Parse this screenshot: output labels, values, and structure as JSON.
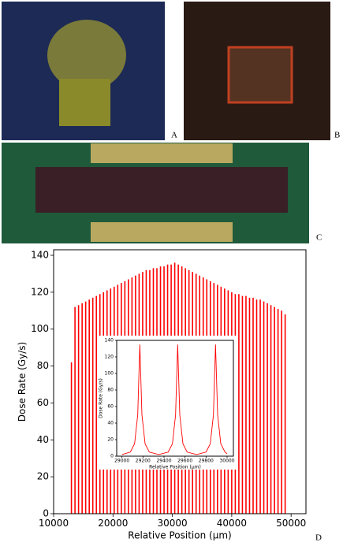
{
  "panel_labels": [
    "A",
    "B",
    "C",
    "D"
  ],
  "chart_data": [
    {
      "type": "stem",
      "color": "#ff0000",
      "xlabel": "Relative Position (μm)",
      "ylabel": "Dose Rate (Gy/s)",
      "xlim": [
        10000,
        52500
      ],
      "ylim": [
        0,
        143
      ],
      "xticks": [
        10000,
        20000,
        30000,
        40000,
        50000
      ],
      "yticks": [
        0,
        20,
        40,
        60,
        80,
        100,
        120,
        140
      ],
      "x": [
        13000,
        13600,
        14200,
        14800,
        15400,
        16000,
        16600,
        17200,
        17800,
        18400,
        19000,
        19600,
        20200,
        20800,
        21400,
        22000,
        22600,
        23200,
        23800,
        24400,
        25000,
        25600,
        26200,
        26800,
        27400,
        28000,
        28600,
        29200,
        29800,
        30400,
        31000,
        31600,
        32200,
        32800,
        33400,
        34000,
        34600,
        35200,
        35800,
        36400,
        37000,
        37600,
        38200,
        38800,
        39400,
        40000,
        40600,
        41200,
        41800,
        42400,
        43000,
        43600,
        44200,
        44800,
        45400,
        46000,
        46600,
        47200,
        47800,
        48400,
        49000
      ],
      "values": [
        82,
        112,
        113,
        114,
        115,
        116,
        117,
        118,
        119,
        120,
        121,
        122,
        123,
        124,
        125,
        126,
        127,
        128,
        129,
        130,
        131,
        132,
        132,
        133,
        133,
        134,
        134,
        135,
        135,
        136,
        135,
        134,
        133,
        132,
        131,
        130,
        129,
        128,
        127,
        126,
        125,
        124,
        123,
        122,
        121,
        120,
        119,
        119,
        118,
        118,
        117,
        117,
        116,
        116,
        115,
        114,
        113,
        112,
        111,
        110,
        108
      ]
    },
    {
      "type": "line",
      "color": "#ff0000",
      "xlabel": "Relative Position (μm)",
      "ylabel": "Dose Rate (Gy/s)",
      "xlim": [
        28950,
        30060
      ],
      "ylim": [
        0,
        140
      ],
      "xticks": [
        29000,
        29200,
        29400,
        29600,
        29800,
        30000
      ],
      "yticks": [
        0,
        20,
        40,
        60,
        80,
        100,
        120,
        140
      ],
      "x": [
        29000,
        29080,
        29120,
        29150,
        29170,
        29190,
        29220,
        29260,
        29350,
        29440,
        29480,
        29510,
        29530,
        29550,
        29580,
        29620,
        29710,
        29800,
        29840,
        29870,
        29890,
        29910,
        29940,
        29980,
        30000
      ],
      "values": [
        2,
        5,
        15,
        50,
        135,
        50,
        15,
        5,
        2,
        5,
        15,
        50,
        135,
        50,
        15,
        5,
        2,
        5,
        15,
        50,
        135,
        50,
        15,
        5,
        3
      ]
    }
  ]
}
